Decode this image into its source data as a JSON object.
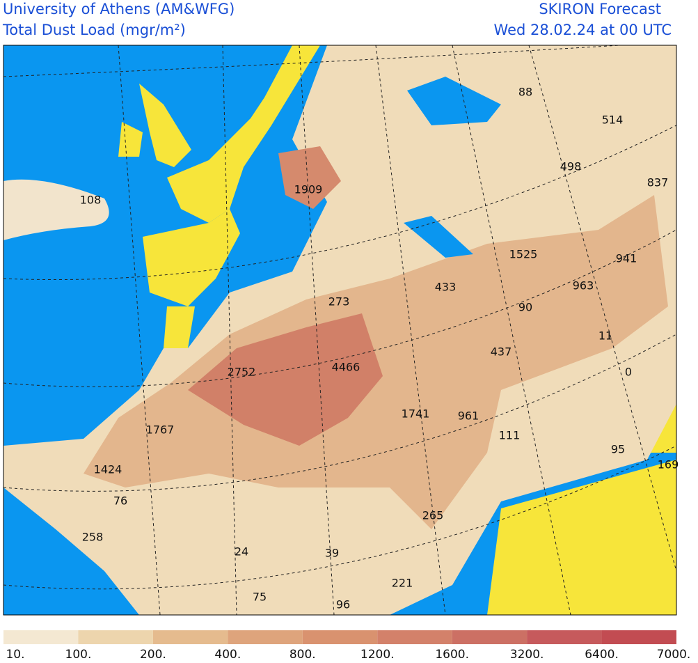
{
  "header": {
    "left_line1": "University of Athens (AM&WFG)",
    "left_line2": "Total Dust Load (mgr/m²)",
    "right_line1": "SKIRON Forecast",
    "right_line2": "Wed 28.02.24 at 00 UTC"
  },
  "map_labels": [
    108,
    1909,
    88,
    514,
    498,
    837,
    1525,
    941,
    963,
    433,
    273,
    90,
    11,
    437,
    0,
    2752,
    4466,
    1741,
    961,
    111,
    1767,
    95,
    169,
    1424,
    76,
    265,
    258,
    24,
    39,
    221,
    75,
    96
  ],
  "legend": {
    "labels": [
      "10.",
      "100.",
      "200.",
      "400.",
      "800.",
      "1200.",
      "1600.",
      "3200.",
      "6400.",
      "7000."
    ],
    "colors": [
      "#f4e8d2",
      "#edd5ad",
      "#e5bb8e",
      "#dea47c",
      "#d9926f",
      "#d3816a",
      "#cc7064",
      "#c65a5c",
      "#c24c52"
    ]
  }
}
